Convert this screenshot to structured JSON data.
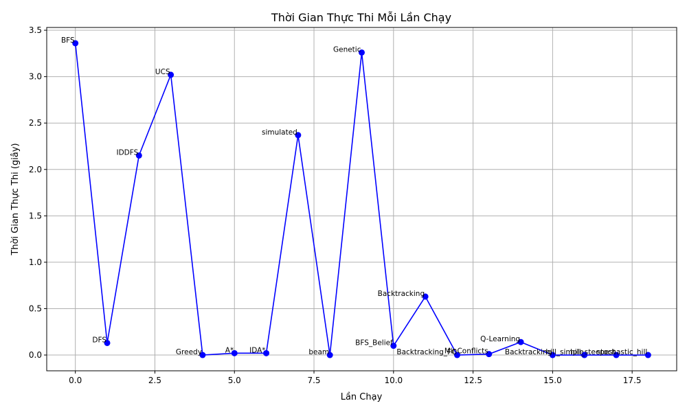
{
  "chart_data": {
    "type": "line",
    "title": "Thời Gian Thực Thi Mỗi Lần Chạy",
    "xlabel": "Lần Chạy",
    "ylabel": "Thời Gian Thực Thi (giây)",
    "xlim": [
      -0.9,
      18.9
    ],
    "ylim": [
      -0.17,
      3.53
    ],
    "xticks": [
      0,
      2.5,
      5,
      7.5,
      10,
      12.5,
      15,
      17.5
    ],
    "xtick_labels": [
      "0.0",
      "2.5",
      "5.0",
      "7.5",
      "10.0",
      "12.5",
      "15.0",
      "17.5"
    ],
    "yticks": [
      0,
      0.5,
      1,
      1.5,
      2,
      2.5,
      3,
      3.5
    ],
    "ytick_labels": [
      "0.0",
      "0.5",
      "1.0",
      "1.5",
      "2.0",
      "2.5",
      "3.0",
      "3.5"
    ],
    "grid": true,
    "line_color": "#0000ff",
    "points": [
      {
        "x": 0,
        "y": 3.36,
        "label": "BFS"
      },
      {
        "x": 1,
        "y": 0.13,
        "label": "DFS"
      },
      {
        "x": 2,
        "y": 2.15,
        "label": "IDDFS"
      },
      {
        "x": 3,
        "y": 3.02,
        "label": "UCS"
      },
      {
        "x": 4,
        "y": 0.0,
        "label": "Greedy"
      },
      {
        "x": 5,
        "y": 0.02,
        "label": "A*"
      },
      {
        "x": 6,
        "y": 0.02,
        "label": "IDA*"
      },
      {
        "x": 7,
        "y": 2.37,
        "label": "simulated"
      },
      {
        "x": 8,
        "y": 0.0,
        "label": "beam"
      },
      {
        "x": 9,
        "y": 3.26,
        "label": "Genetic"
      },
      {
        "x": 10,
        "y": 0.1,
        "label": "BFS_Belief"
      },
      {
        "x": 11,
        "y": 0.63,
        "label": "Backtracking"
      },
      {
        "x": 12,
        "y": 0.0,
        "label": "Backtracking_FC"
      },
      {
        "x": 13,
        "y": 0.01,
        "label": "MinConflicts"
      },
      {
        "x": 14,
        "y": 0.14,
        "label": "Q-Learning"
      },
      {
        "x": 15,
        "y": 0.0,
        "label": "Backtracking"
      },
      {
        "x": 16,
        "y": 0.0,
        "label": "hill_simple"
      },
      {
        "x": 17,
        "y": 0.0,
        "label": "hill_steepest"
      },
      {
        "x": 18,
        "y": 0.0,
        "label": "stochastic_hill"
      }
    ]
  }
}
